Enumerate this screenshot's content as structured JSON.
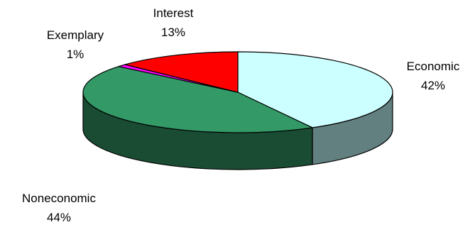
{
  "chart_data": {
    "type": "pie",
    "style": "3d",
    "title": "",
    "slices": [
      {
        "label": "Economic",
        "value": 42,
        "value_label": "42%",
        "color": "#ccffff",
        "side_color": "#638080"
      },
      {
        "label": "Noneconomic",
        "value": 44,
        "value_label": "44%",
        "color": "#339966",
        "side_color": "#1a4c33"
      },
      {
        "label": "Exemplary",
        "value": 1,
        "value_label": "1%",
        "color": "#ff00ff",
        "side_color": "#800080"
      },
      {
        "label": "Interest",
        "value": 13,
        "value_label": "13%",
        "color": "#ff0000",
        "side_color": "#800000"
      }
    ],
    "start_angle_deg": -90,
    "direction": "clockwise",
    "edge_color": "#000000",
    "legend": "none"
  }
}
